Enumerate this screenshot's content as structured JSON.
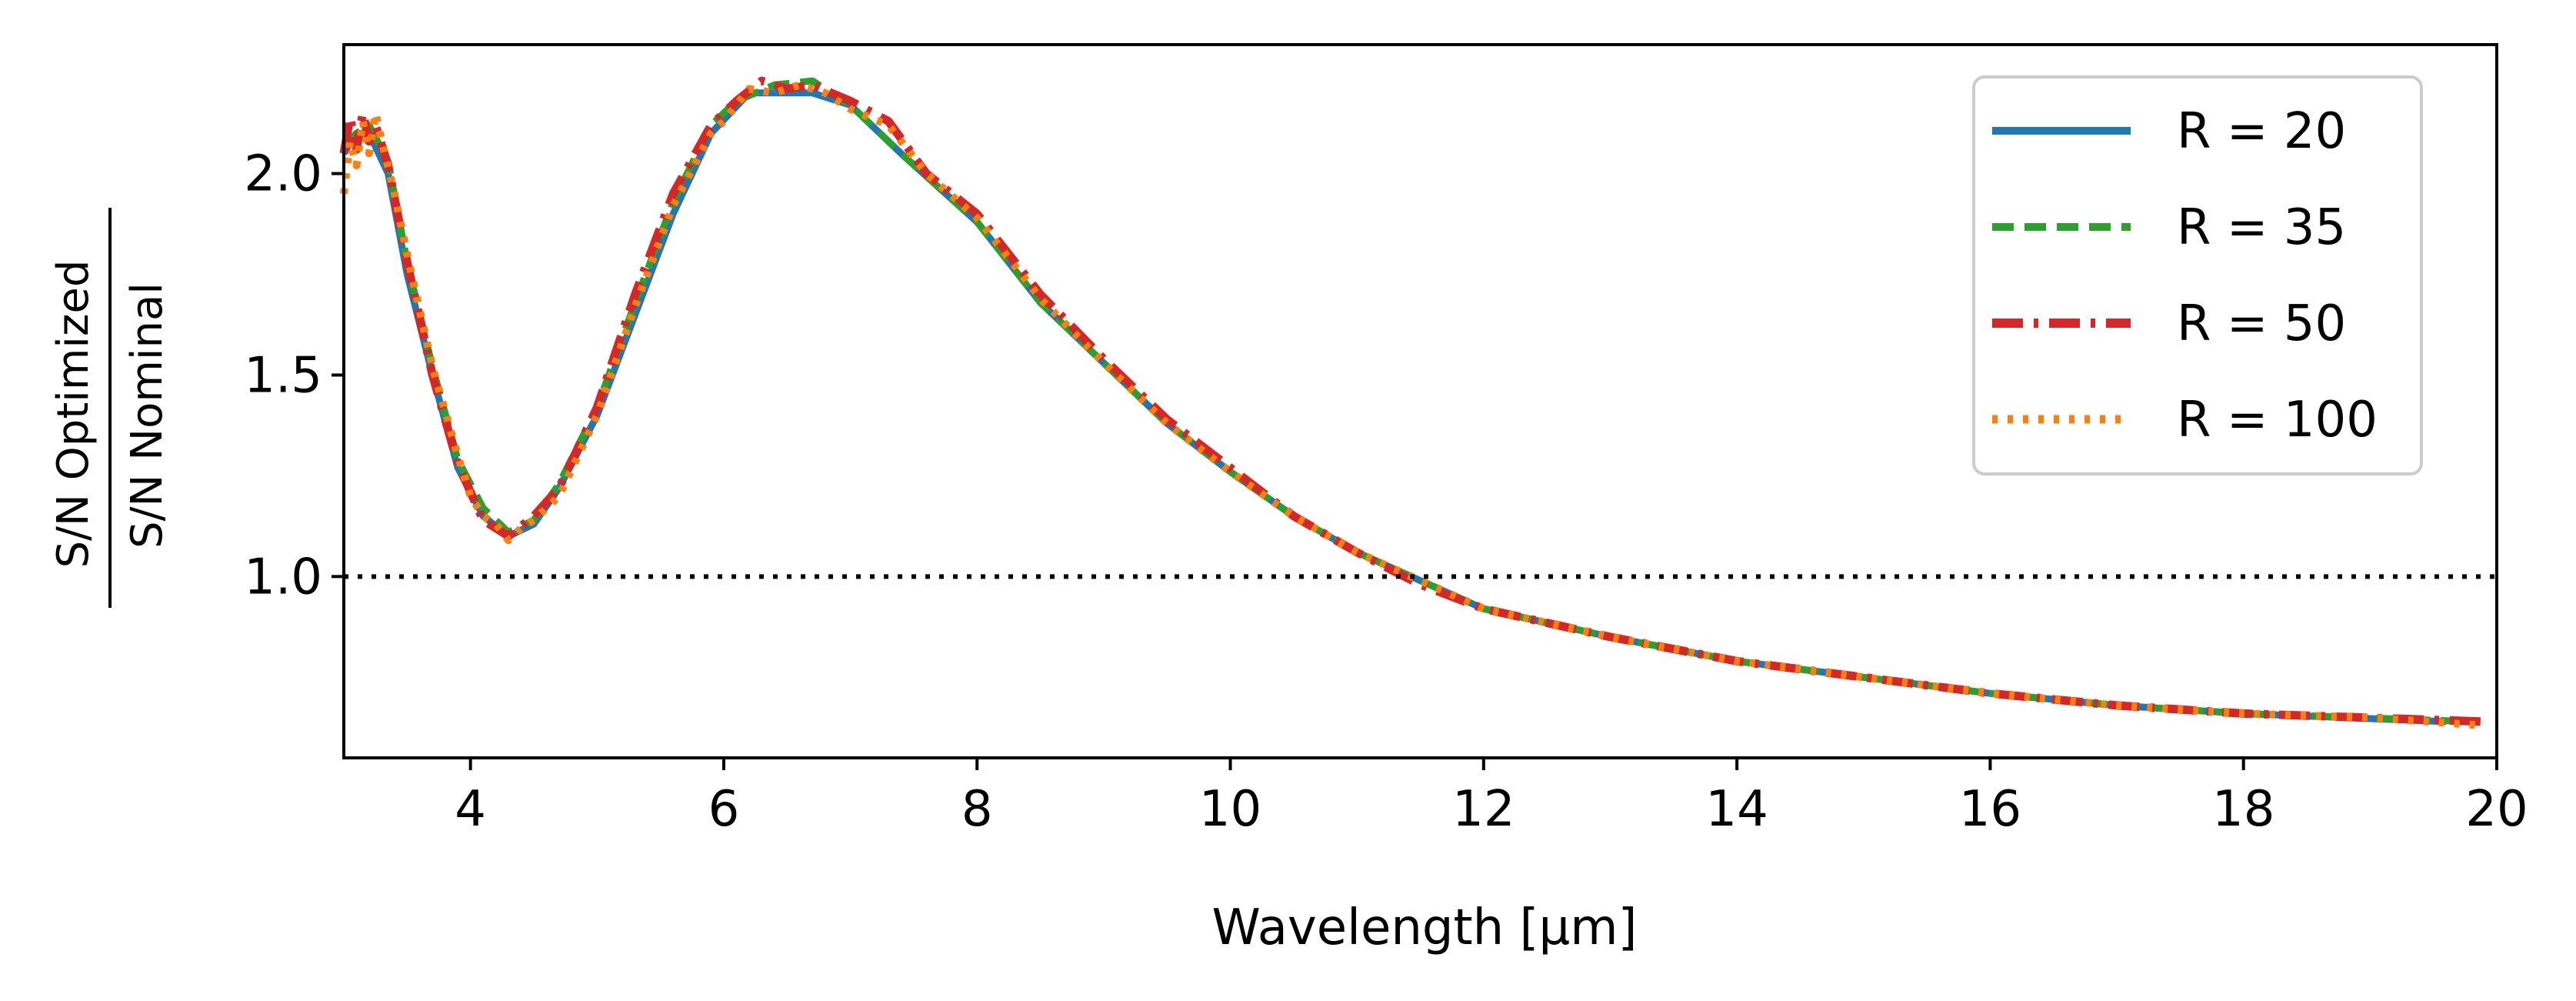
{
  "colors": {
    "R20": "#1f77b4",
    "R35": "#2ca02c",
    "R50": "#d62728",
    "R100": "#ff7f0e",
    "reference": "#000000"
  },
  "chart_data": {
    "type": "line",
    "title": "",
    "xlabel": "Wavelength [μm]",
    "ylabel": {
      "numerator": "S/N Optimized",
      "denominator": "S/N Nominal"
    },
    "xlim": [
      3,
      20
    ],
    "ylim": [
      0.55,
      2.32
    ],
    "xticks": [
      4,
      6,
      8,
      10,
      12,
      14,
      16,
      18,
      20
    ],
    "xtick_labels": [
      "4",
      "6",
      "8",
      "10",
      "12",
      "14",
      "16",
      "18",
      "20"
    ],
    "yticks": [
      1.0,
      1.5,
      2.0
    ],
    "ytick_labels": [
      "1.0",
      "1.5",
      "2.0"
    ],
    "grid": false,
    "legend_position": "top-right",
    "reference_line": {
      "y": 1.0,
      "style": "dotted"
    },
    "series": [
      {
        "name": "R = 20",
        "style": "solid",
        "color_key": "R20",
        "x": [
          3.0,
          3.1,
          3.2,
          3.35,
          3.5,
          3.7,
          3.9,
          4.1,
          4.3,
          4.5,
          4.7,
          5.0,
          5.3,
          5.6,
          5.9,
          6.2,
          6.7,
          7.0,
          7.4,
          8.0,
          8.5,
          9.0,
          9.5,
          10.0,
          10.5,
          11.0,
          11.5,
          12.0,
          13.0,
          14.0,
          15.0,
          16.0,
          17.0,
          18.0,
          19.6
        ],
        "y": [
          2.05,
          2.1,
          2.1,
          2.0,
          1.75,
          1.5,
          1.27,
          1.15,
          1.1,
          1.13,
          1.22,
          1.4,
          1.65,
          1.9,
          2.1,
          2.2,
          2.2,
          2.17,
          2.05,
          1.88,
          1.68,
          1.53,
          1.38,
          1.26,
          1.15,
          1.06,
          0.99,
          0.92,
          0.85,
          0.79,
          0.75,
          0.71,
          0.68,
          0.66,
          0.64
        ]
      },
      {
        "name": "R = 35",
        "style": "dashed",
        "color_key": "R35",
        "x": [
          3.0,
          3.1,
          3.2,
          3.35,
          3.5,
          3.7,
          3.9,
          4.1,
          4.3,
          4.5,
          4.7,
          5.0,
          5.3,
          5.6,
          5.9,
          6.1,
          6.4,
          6.7,
          7.0,
          7.4,
          8.0,
          8.5,
          9.0,
          9.5,
          10.0,
          10.5,
          11.0,
          11.5,
          12.0,
          13.0,
          14.0,
          15.0,
          16.0,
          17.0,
          18.0,
          19.8
        ],
        "y": [
          2.07,
          2.1,
          2.12,
          2.03,
          1.78,
          1.52,
          1.29,
          1.17,
          1.11,
          1.14,
          1.23,
          1.42,
          1.68,
          1.93,
          2.12,
          2.18,
          2.22,
          2.23,
          2.17,
          2.05,
          1.88,
          1.68,
          1.53,
          1.38,
          1.26,
          1.15,
          1.06,
          0.99,
          0.92,
          0.85,
          0.79,
          0.75,
          0.71,
          0.68,
          0.66,
          0.64
        ]
      },
      {
        "name": "R = 50",
        "style": "dashdot",
        "color_key": "R50",
        "x": [
          3.0,
          3.05,
          3.1,
          3.15,
          3.2,
          3.25,
          3.35,
          3.5,
          3.7,
          3.9,
          4.1,
          4.3,
          4.5,
          4.7,
          5.0,
          5.3,
          5.6,
          5.9,
          6.1,
          6.3,
          6.5,
          6.7,
          7.0,
          7.3,
          7.6,
          8.0,
          8.5,
          9.0,
          9.5,
          10.0,
          10.5,
          11.0,
          11.5,
          12.0,
          13.0,
          14.0,
          15.0,
          16.0,
          17.0,
          18.0,
          19.9
        ],
        "y": [
          2.05,
          2.14,
          2.06,
          2.15,
          2.08,
          2.12,
          2.02,
          1.78,
          1.5,
          1.28,
          1.14,
          1.1,
          1.15,
          1.22,
          1.42,
          1.7,
          1.95,
          2.12,
          2.18,
          2.23,
          2.21,
          2.22,
          2.18,
          2.13,
          2.0,
          1.9,
          1.7,
          1.54,
          1.39,
          1.27,
          1.15,
          1.06,
          0.98,
          0.92,
          0.85,
          0.79,
          0.75,
          0.71,
          0.68,
          0.66,
          0.64
        ]
      },
      {
        "name": "R = 100",
        "style": "dotted",
        "color_key": "R100",
        "x": [
          3.0,
          3.05,
          3.1,
          3.15,
          3.2,
          3.25,
          3.3,
          3.4,
          3.5,
          3.7,
          3.9,
          4.0,
          4.1,
          4.2,
          4.3,
          4.4,
          4.5,
          4.7,
          5.0,
          5.3,
          5.6,
          5.9,
          6.0,
          6.2,
          6.4,
          6.6,
          6.8,
          7.0,
          7.3,
          7.6,
          8.0,
          8.5,
          9.0,
          9.5,
          10.0,
          10.5,
          11.0,
          11.5,
          12.0,
          13.0,
          14.0,
          15.0,
          16.0,
          17.0,
          18.0,
          19.0,
          19.9
        ],
        "y": [
          1.95,
          2.08,
          2.02,
          2.13,
          2.05,
          2.15,
          2.08,
          1.95,
          1.8,
          1.52,
          1.3,
          1.2,
          1.15,
          1.13,
          1.09,
          1.12,
          1.14,
          1.2,
          1.4,
          1.67,
          1.92,
          2.1,
          2.13,
          2.21,
          2.2,
          2.22,
          2.2,
          2.16,
          2.12,
          2.0,
          1.89,
          1.69,
          1.53,
          1.38,
          1.26,
          1.15,
          1.06,
          0.99,
          0.92,
          0.85,
          0.79,
          0.75,
          0.71,
          0.68,
          0.66,
          0.65,
          0.63
        ]
      }
    ]
  }
}
